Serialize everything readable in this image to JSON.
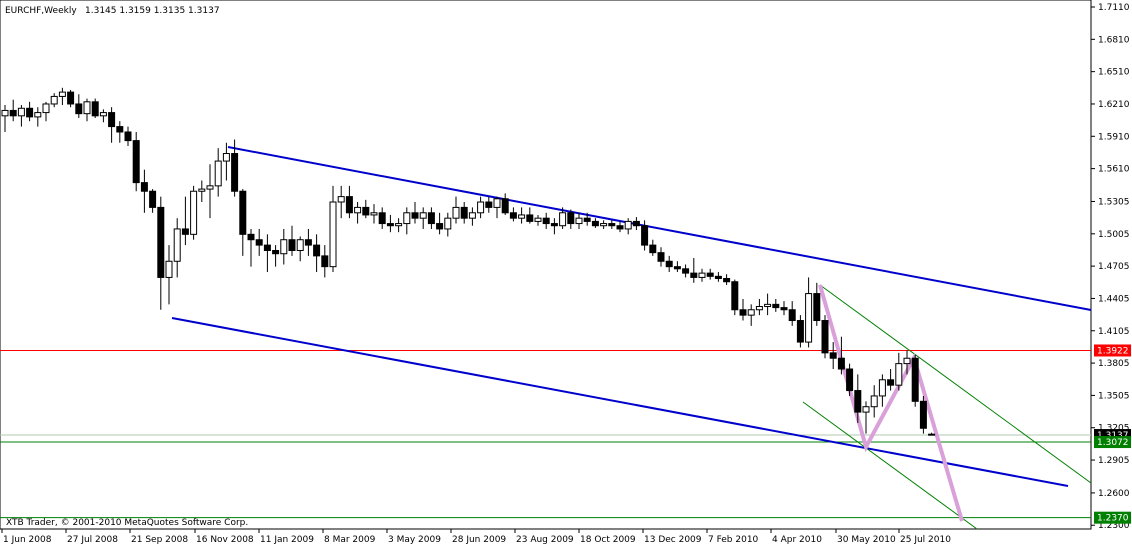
{
  "header": {
    "symbol_timeframe": "EURCHF,Weekly",
    "ohlc": "1.3145 1.3159 1.3135 1.3137"
  },
  "footer": {
    "copyright": "XTB Trader, © 2001-2010 MetaQuotes Software Corp."
  },
  "colors": {
    "background": "#ffffff",
    "candle_bull": "#ffffff",
    "candle_bear": "#000000",
    "channel": "#0000cc",
    "fan": "#008000",
    "red_level": "#ff0000",
    "green_level": "#008000",
    "projection": "#d9a0d9"
  },
  "chart_data": {
    "type": "candlestick",
    "y_axis_labels": [
      "1.7110",
      "1.6810",
      "1.6510",
      "1.6210",
      "1.5910",
      "1.5610",
      "1.5305",
      "1.5005",
      "1.4705",
      "1.4405",
      "1.4105",
      "1.3805",
      "1.3505",
      "1.3205",
      "1.2905",
      "1.2600",
      "1.2300"
    ],
    "x_axis_labels": [
      "1 Jun 2008",
      "27 Jul 2008",
      "21 Sep 2008",
      "16 Nov 2008",
      "11 Jan 2009",
      "8 Mar 2009",
      "3 May 2009",
      "28 Jun 2009",
      "23 Aug 2009",
      "18 Oct 2009",
      "13 Dec 2009",
      "7 Feb 2010",
      "4 Apr 2010",
      "30 May 2010",
      "25 Jul 2010"
    ],
    "ylim": [
      1.2265,
      1.7175
    ],
    "price_labels": [
      {
        "value": 1.3922,
        "text": "1.3922",
        "color": "#ff0000"
      },
      {
        "value": 1.3137,
        "text": "1.3137",
        "color": "#000000"
      },
      {
        "value": 1.3072,
        "text": "1.3072",
        "color": "#008000"
      },
      {
        "value": 1.237,
        "text": "1.2370",
        "color": "#008000"
      }
    ],
    "horizontal_lines": [
      {
        "value": 1.3922,
        "color": "#ff0000"
      },
      {
        "value": 1.3072,
        "color": "#008000"
      },
      {
        "value": 1.237,
        "color": "#008000"
      }
    ],
    "candles": [
      {
        "x": 1,
        "o": 1.61,
        "h": 1.62,
        "l": 1.595,
        "c": 1.615
      },
      {
        "x": 2,
        "o": 1.615,
        "h": 1.625,
        "l": 1.605,
        "c": 1.61
      },
      {
        "x": 3,
        "o": 1.61,
        "h": 1.62,
        "l": 1.6,
        "c": 1.617
      },
      {
        "x": 4,
        "o": 1.617,
        "h": 1.623,
        "l": 1.605,
        "c": 1.609
      },
      {
        "x": 5,
        "o": 1.609,
        "h": 1.618,
        "l": 1.6,
        "c": 1.613
      },
      {
        "x": 6,
        "o": 1.613,
        "h": 1.623,
        "l": 1.605,
        "c": 1.621
      },
      {
        "x": 7,
        "o": 1.621,
        "h": 1.631,
        "l": 1.618,
        "c": 1.628
      },
      {
        "x": 8,
        "o": 1.628,
        "h": 1.636,
        "l": 1.62,
        "c": 1.632
      },
      {
        "x": 9,
        "o": 1.632,
        "h": 1.634,
        "l": 1.618,
        "c": 1.621
      },
      {
        "x": 10,
        "o": 1.621,
        "h": 1.63,
        "l": 1.608,
        "c": 1.612
      },
      {
        "x": 11,
        "o": 1.612,
        "h": 1.626,
        "l": 1.605,
        "c": 1.623
      },
      {
        "x": 12,
        "o": 1.623,
        "h": 1.626,
        "l": 1.608,
        "c": 1.61
      },
      {
        "x": 13,
        "o": 1.61,
        "h": 1.616,
        "l": 1.604,
        "c": 1.613
      },
      {
        "x": 14,
        "o": 1.613,
        "h": 1.618,
        "l": 1.585,
        "c": 1.6
      },
      {
        "x": 15,
        "o": 1.6,
        "h": 1.605,
        "l": 1.585,
        "c": 1.595
      },
      {
        "x": 16,
        "o": 1.595,
        "h": 1.6,
        "l": 1.582,
        "c": 1.587
      },
      {
        "x": 17,
        "o": 1.587,
        "h": 1.595,
        "l": 1.54,
        "c": 1.548
      },
      {
        "x": 18,
        "o": 1.548,
        "h": 1.56,
        "l": 1.52,
        "c": 1.54
      },
      {
        "x": 19,
        "o": 1.54,
        "h": 1.542,
        "l": 1.52,
        "c": 1.525
      },
      {
        "x": 20,
        "o": 1.525,
        "h": 1.535,
        "l": 1.43,
        "c": 1.46
      },
      {
        "x": 21,
        "o": 1.46,
        "h": 1.49,
        "l": 1.435,
        "c": 1.475
      },
      {
        "x": 22,
        "o": 1.475,
        "h": 1.515,
        "l": 1.46,
        "c": 1.505
      },
      {
        "x": 23,
        "o": 1.505,
        "h": 1.535,
        "l": 1.49,
        "c": 1.5
      },
      {
        "x": 24,
        "o": 1.5,
        "h": 1.545,
        "l": 1.495,
        "c": 1.54
      },
      {
        "x": 25,
        "o": 1.54,
        "h": 1.55,
        "l": 1.53,
        "c": 1.542
      },
      {
        "x": 26,
        "o": 1.542,
        "h": 1.565,
        "l": 1.515,
        "c": 1.545
      },
      {
        "x": 27,
        "o": 1.545,
        "h": 1.58,
        "l": 1.535,
        "c": 1.568
      },
      {
        "x": 28,
        "o": 1.568,
        "h": 1.585,
        "l": 1.55,
        "c": 1.575
      },
      {
        "x": 29,
        "o": 1.575,
        "h": 1.588,
        "l": 1.535,
        "c": 1.54
      },
      {
        "x": 30,
        "o": 1.54,
        "h": 1.542,
        "l": 1.48,
        "c": 1.5
      },
      {
        "x": 31,
        "o": 1.5,
        "h": 1.505,
        "l": 1.47,
        "c": 1.495
      },
      {
        "x": 32,
        "o": 1.495,
        "h": 1.505,
        "l": 1.48,
        "c": 1.49
      },
      {
        "x": 33,
        "o": 1.49,
        "h": 1.5,
        "l": 1.465,
        "c": 1.485
      },
      {
        "x": 34,
        "o": 1.485,
        "h": 1.49,
        "l": 1.47,
        "c": 1.482
      },
      {
        "x": 35,
        "o": 1.482,
        "h": 1.505,
        "l": 1.472,
        "c": 1.495
      },
      {
        "x": 36,
        "o": 1.495,
        "h": 1.508,
        "l": 1.48,
        "c": 1.485
      },
      {
        "x": 37,
        "o": 1.485,
        "h": 1.498,
        "l": 1.475,
        "c": 1.495
      },
      {
        "x": 38,
        "o": 1.495,
        "h": 1.505,
        "l": 1.48,
        "c": 1.49
      },
      {
        "x": 39,
        "o": 1.49,
        "h": 1.5,
        "l": 1.465,
        "c": 1.48
      },
      {
        "x": 40,
        "o": 1.48,
        "h": 1.49,
        "l": 1.46,
        "c": 1.47
      },
      {
        "x": 41,
        "o": 1.47,
        "h": 1.545,
        "l": 1.465,
        "c": 1.53
      },
      {
        "x": 42,
        "o": 1.53,
        "h": 1.545,
        "l": 1.515,
        "c": 1.535
      },
      {
        "x": 43,
        "o": 1.535,
        "h": 1.545,
        "l": 1.515,
        "c": 1.52
      },
      {
        "x": 44,
        "o": 1.52,
        "h": 1.53,
        "l": 1.51,
        "c": 1.525
      },
      {
        "x": 45,
        "o": 1.525,
        "h": 1.532,
        "l": 1.515,
        "c": 1.518
      },
      {
        "x": 46,
        "o": 1.518,
        "h": 1.528,
        "l": 1.51,
        "c": 1.52
      },
      {
        "x": 47,
        "o": 1.52,
        "h": 1.525,
        "l": 1.505,
        "c": 1.51
      },
      {
        "x": 48,
        "o": 1.51,
        "h": 1.518,
        "l": 1.502,
        "c": 1.508
      },
      {
        "x": 49,
        "o": 1.508,
        "h": 1.515,
        "l": 1.502,
        "c": 1.51
      },
      {
        "x": 50,
        "o": 1.51,
        "h": 1.525,
        "l": 1.5,
        "c": 1.52
      },
      {
        "x": 51,
        "o": 1.52,
        "h": 1.53,
        "l": 1.51,
        "c": 1.515
      },
      {
        "x": 52,
        "o": 1.515,
        "h": 1.525,
        "l": 1.505,
        "c": 1.52
      },
      {
        "x": 53,
        "o": 1.52,
        "h": 1.525,
        "l": 1.505,
        "c": 1.51
      },
      {
        "x": 54,
        "o": 1.51,
        "h": 1.52,
        "l": 1.5,
        "c": 1.505
      },
      {
        "x": 55,
        "o": 1.505,
        "h": 1.52,
        "l": 1.498,
        "c": 1.515
      },
      {
        "x": 56,
        "o": 1.515,
        "h": 1.535,
        "l": 1.51,
        "c": 1.525
      },
      {
        "x": 57,
        "o": 1.525,
        "h": 1.53,
        "l": 1.51,
        "c": 1.515
      },
      {
        "x": 58,
        "o": 1.515,
        "h": 1.525,
        "l": 1.508,
        "c": 1.52
      },
      {
        "x": 59,
        "o": 1.52,
        "h": 1.535,
        "l": 1.515,
        "c": 1.53
      },
      {
        "x": 60,
        "o": 1.53,
        "h": 1.535,
        "l": 1.52,
        "c": 1.525
      },
      {
        "x": 61,
        "o": 1.525,
        "h": 1.535,
        "l": 1.515,
        "c": 1.533
      },
      {
        "x": 62,
        "o": 1.533,
        "h": 1.538,
        "l": 1.518,
        "c": 1.52
      },
      {
        "x": 63,
        "o": 1.52,
        "h": 1.525,
        "l": 1.512,
        "c": 1.515
      },
      {
        "x": 64,
        "o": 1.515,
        "h": 1.525,
        "l": 1.51,
        "c": 1.518
      },
      {
        "x": 65,
        "o": 1.518,
        "h": 1.525,
        "l": 1.51,
        "c": 1.512
      },
      {
        "x": 66,
        "o": 1.512,
        "h": 1.518,
        "l": 1.508,
        "c": 1.515
      },
      {
        "x": 67,
        "o": 1.515,
        "h": 1.52,
        "l": 1.505,
        "c": 1.51
      },
      {
        "x": 68,
        "o": 1.51,
        "h": 1.515,
        "l": 1.5,
        "c": 1.508
      },
      {
        "x": 69,
        "o": 1.508,
        "h": 1.525,
        "l": 1.505,
        "c": 1.52
      },
      {
        "x": 70,
        "o": 1.52,
        "h": 1.523,
        "l": 1.505,
        "c": 1.51
      },
      {
        "x": 71,
        "o": 1.51,
        "h": 1.52,
        "l": 1.505,
        "c": 1.515
      },
      {
        "x": 72,
        "o": 1.515,
        "h": 1.52,
        "l": 1.508,
        "c": 1.512
      },
      {
        "x": 73,
        "o": 1.512,
        "h": 1.515,
        "l": 1.506,
        "c": 1.508
      },
      {
        "x": 74,
        "o": 1.508,
        "h": 1.513,
        "l": 1.505,
        "c": 1.51
      },
      {
        "x": 75,
        "o": 1.51,
        "h": 1.513,
        "l": 1.505,
        "c": 1.508
      },
      {
        "x": 76,
        "o": 1.508,
        "h": 1.512,
        "l": 1.502,
        "c": 1.505
      },
      {
        "x": 77,
        "o": 1.505,
        "h": 1.515,
        "l": 1.5,
        "c": 1.512
      },
      {
        "x": 78,
        "o": 1.512,
        "h": 1.516,
        "l": 1.504,
        "c": 1.508
      },
      {
        "x": 79,
        "o": 1.508,
        "h": 1.513,
        "l": 1.485,
        "c": 1.49
      },
      {
        "x": 80,
        "o": 1.49,
        "h": 1.495,
        "l": 1.48,
        "c": 1.483
      },
      {
        "x": 81,
        "o": 1.483,
        "h": 1.488,
        "l": 1.47,
        "c": 1.475
      },
      {
        "x": 82,
        "o": 1.475,
        "h": 1.48,
        "l": 1.465,
        "c": 1.47
      },
      {
        "x": 83,
        "o": 1.47,
        "h": 1.475,
        "l": 1.465,
        "c": 1.468
      },
      {
        "x": 84,
        "o": 1.468,
        "h": 1.472,
        "l": 1.46,
        "c": 1.464
      },
      {
        "x": 85,
        "o": 1.464,
        "h": 1.478,
        "l": 1.455,
        "c": 1.46
      },
      {
        "x": 86,
        "o": 1.46,
        "h": 1.468,
        "l": 1.456,
        "c": 1.464
      },
      {
        "x": 87,
        "o": 1.464,
        "h": 1.468,
        "l": 1.458,
        "c": 1.461
      },
      {
        "x": 88,
        "o": 1.461,
        "h": 1.465,
        "l": 1.456,
        "c": 1.459
      },
      {
        "x": 89,
        "o": 1.459,
        "h": 1.463,
        "l": 1.453,
        "c": 1.456
      },
      {
        "x": 90,
        "o": 1.456,
        "h": 1.458,
        "l": 1.425,
        "c": 1.43
      },
      {
        "x": 91,
        "o": 1.43,
        "h": 1.44,
        "l": 1.42,
        "c": 1.425
      },
      {
        "x": 92,
        "o": 1.425,
        "h": 1.435,
        "l": 1.415,
        "c": 1.43
      },
      {
        "x": 93,
        "o": 1.43,
        "h": 1.44,
        "l": 1.425,
        "c": 1.433
      },
      {
        "x": 94,
        "o": 1.433,
        "h": 1.445,
        "l": 1.425,
        "c": 1.435
      },
      {
        "x": 95,
        "o": 1.435,
        "h": 1.44,
        "l": 1.428,
        "c": 1.432
      },
      {
        "x": 96,
        "o": 1.432,
        "h": 1.438,
        "l": 1.425,
        "c": 1.43
      },
      {
        "x": 97,
        "o": 1.43,
        "h": 1.438,
        "l": 1.415,
        "c": 1.42
      },
      {
        "x": 98,
        "o": 1.42,
        "h": 1.425,
        "l": 1.395,
        "c": 1.4
      },
      {
        "x": 99,
        "o": 1.4,
        "h": 1.46,
        "l": 1.395,
        "c": 1.445
      },
      {
        "x": 100,
        "o": 1.445,
        "h": 1.455,
        "l": 1.415,
        "c": 1.42
      },
      {
        "x": 101,
        "o": 1.42,
        "h": 1.425,
        "l": 1.385,
        "c": 1.39
      },
      {
        "x": 102,
        "o": 1.39,
        "h": 1.4,
        "l": 1.375,
        "c": 1.385
      },
      {
        "x": 103,
        "o": 1.385,
        "h": 1.405,
        "l": 1.37,
        "c": 1.375
      },
      {
        "x": 104,
        "o": 1.375,
        "h": 1.38,
        "l": 1.35,
        "c": 1.355
      },
      {
        "x": 105,
        "o": 1.355,
        "h": 1.37,
        "l": 1.325,
        "c": 1.335
      },
      {
        "x": 106,
        "o": 1.335,
        "h": 1.345,
        "l": 1.315,
        "c": 1.34
      },
      {
        "x": 107,
        "o": 1.34,
        "h": 1.36,
        "l": 1.33,
        "c": 1.35
      },
      {
        "x": 108,
        "o": 1.35,
        "h": 1.37,
        "l": 1.34,
        "c": 1.365
      },
      {
        "x": 109,
        "o": 1.365,
        "h": 1.375,
        "l": 1.355,
        "c": 1.36
      },
      {
        "x": 110,
        "o": 1.36,
        "h": 1.39,
        "l": 1.355,
        "c": 1.38
      },
      {
        "x": 111,
        "o": 1.38,
        "h": 1.3922,
        "l": 1.37,
        "c": 1.385
      },
      {
        "x": 112,
        "o": 1.385,
        "h": 1.388,
        "l": 1.34,
        "c": 1.345
      },
      {
        "x": 113,
        "o": 1.345,
        "h": 1.35,
        "l": 1.315,
        "c": 1.32
      },
      {
        "x": 114,
        "o": 1.3145,
        "h": 1.3159,
        "l": 1.3135,
        "c": 1.3137
      }
    ]
  }
}
